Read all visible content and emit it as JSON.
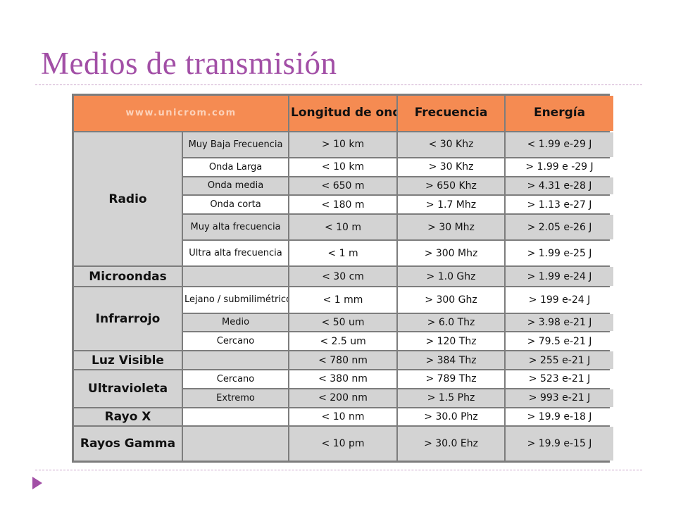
{
  "slide": {
    "title": "Medios de transmisión"
  },
  "table": {
    "headers": {
      "site": "www.unicrom.com",
      "wavelength": "Longitud de onda",
      "frequency": "Frecuencia",
      "energy": "Energía"
    },
    "groups": {
      "radio": "Radio",
      "microwaves": "Microondas",
      "infrared": "Infrarrojo",
      "visible": "Luz Visible",
      "ultraviolet": "Ultravioleta",
      "xray": "Rayo X",
      "gamma": "Rayos Gamma"
    },
    "rows": [
      {
        "sub": "Muy Baja Frecuencia",
        "wavelength": "> 10 km",
        "frequency": "< 30 Khz",
        "energy": "< 1.99 e-29 J"
      },
      {
        "sub": "Onda Larga",
        "wavelength": "< 10 km",
        "frequency": "> 30 Khz",
        "energy": "> 1.99 e -29 J"
      },
      {
        "sub": "Onda media",
        "wavelength": "< 650 m",
        "frequency": "> 650 Khz",
        "energy": "> 4.31 e-28 J"
      },
      {
        "sub": "Onda corta",
        "wavelength": "< 180 m",
        "frequency": "> 1.7 Mhz",
        "energy": "> 1.13 e-27 J"
      },
      {
        "sub": "Muy alta frecuencia",
        "wavelength": "< 10 m",
        "frequency": "> 30 Mhz",
        "energy": "> 2.05 e-26 J"
      },
      {
        "sub": "Ultra alta frecuencia",
        "wavelength": "< 1 m",
        "frequency": "> 300 Mhz",
        "energy": "> 1.99 e-25 J"
      },
      {
        "sub": "",
        "wavelength": "< 30 cm",
        "frequency": "> 1.0 Ghz",
        "energy": "> 1.99 e-24 J"
      },
      {
        "sub": "Lejano / submilimétrico",
        "wavelength": "< 1 mm",
        "frequency": "> 300 Ghz",
        "energy": "> 199 e-24 J"
      },
      {
        "sub": "Medio",
        "wavelength": "< 50 um",
        "frequency": "> 6.0 Thz",
        "energy": "> 3.98 e-21 J"
      },
      {
        "sub": "Cercano",
        "wavelength": "< 2.5 um",
        "frequency": "> 120 Thz",
        "energy": "> 79.5 e-21 J"
      },
      {
        "sub": "",
        "wavelength": "< 780 nm",
        "frequency": "> 384 Thz",
        "energy": "> 255 e-21 J"
      },
      {
        "sub": "Cercano",
        "wavelength": "< 380 nm",
        "frequency": "> 789 Thz",
        "energy": "> 523 e-21 J"
      },
      {
        "sub": "Extremo",
        "wavelength": "< 200 nm",
        "frequency": "> 1.5 Phz",
        "energy": "> 993 e-21 J"
      },
      {
        "sub": "",
        "wavelength": "< 10 nm",
        "frequency": "> 30.0 Phz",
        "energy": "> 19.9 e-18 J"
      },
      {
        "sub": "",
        "wavelength": "< 10 pm",
        "frequency": "> 30.0 Ehz",
        "energy": "> 19.9 e-15 J"
      }
    ]
  },
  "theme": {
    "title_color": "#a24fa6",
    "header_color": "#f58b52",
    "shade_color": "#d3d3d3",
    "grid_color": "#7d7d7d"
  },
  "icons": {
    "bullet": "triangle-bullet-icon"
  }
}
